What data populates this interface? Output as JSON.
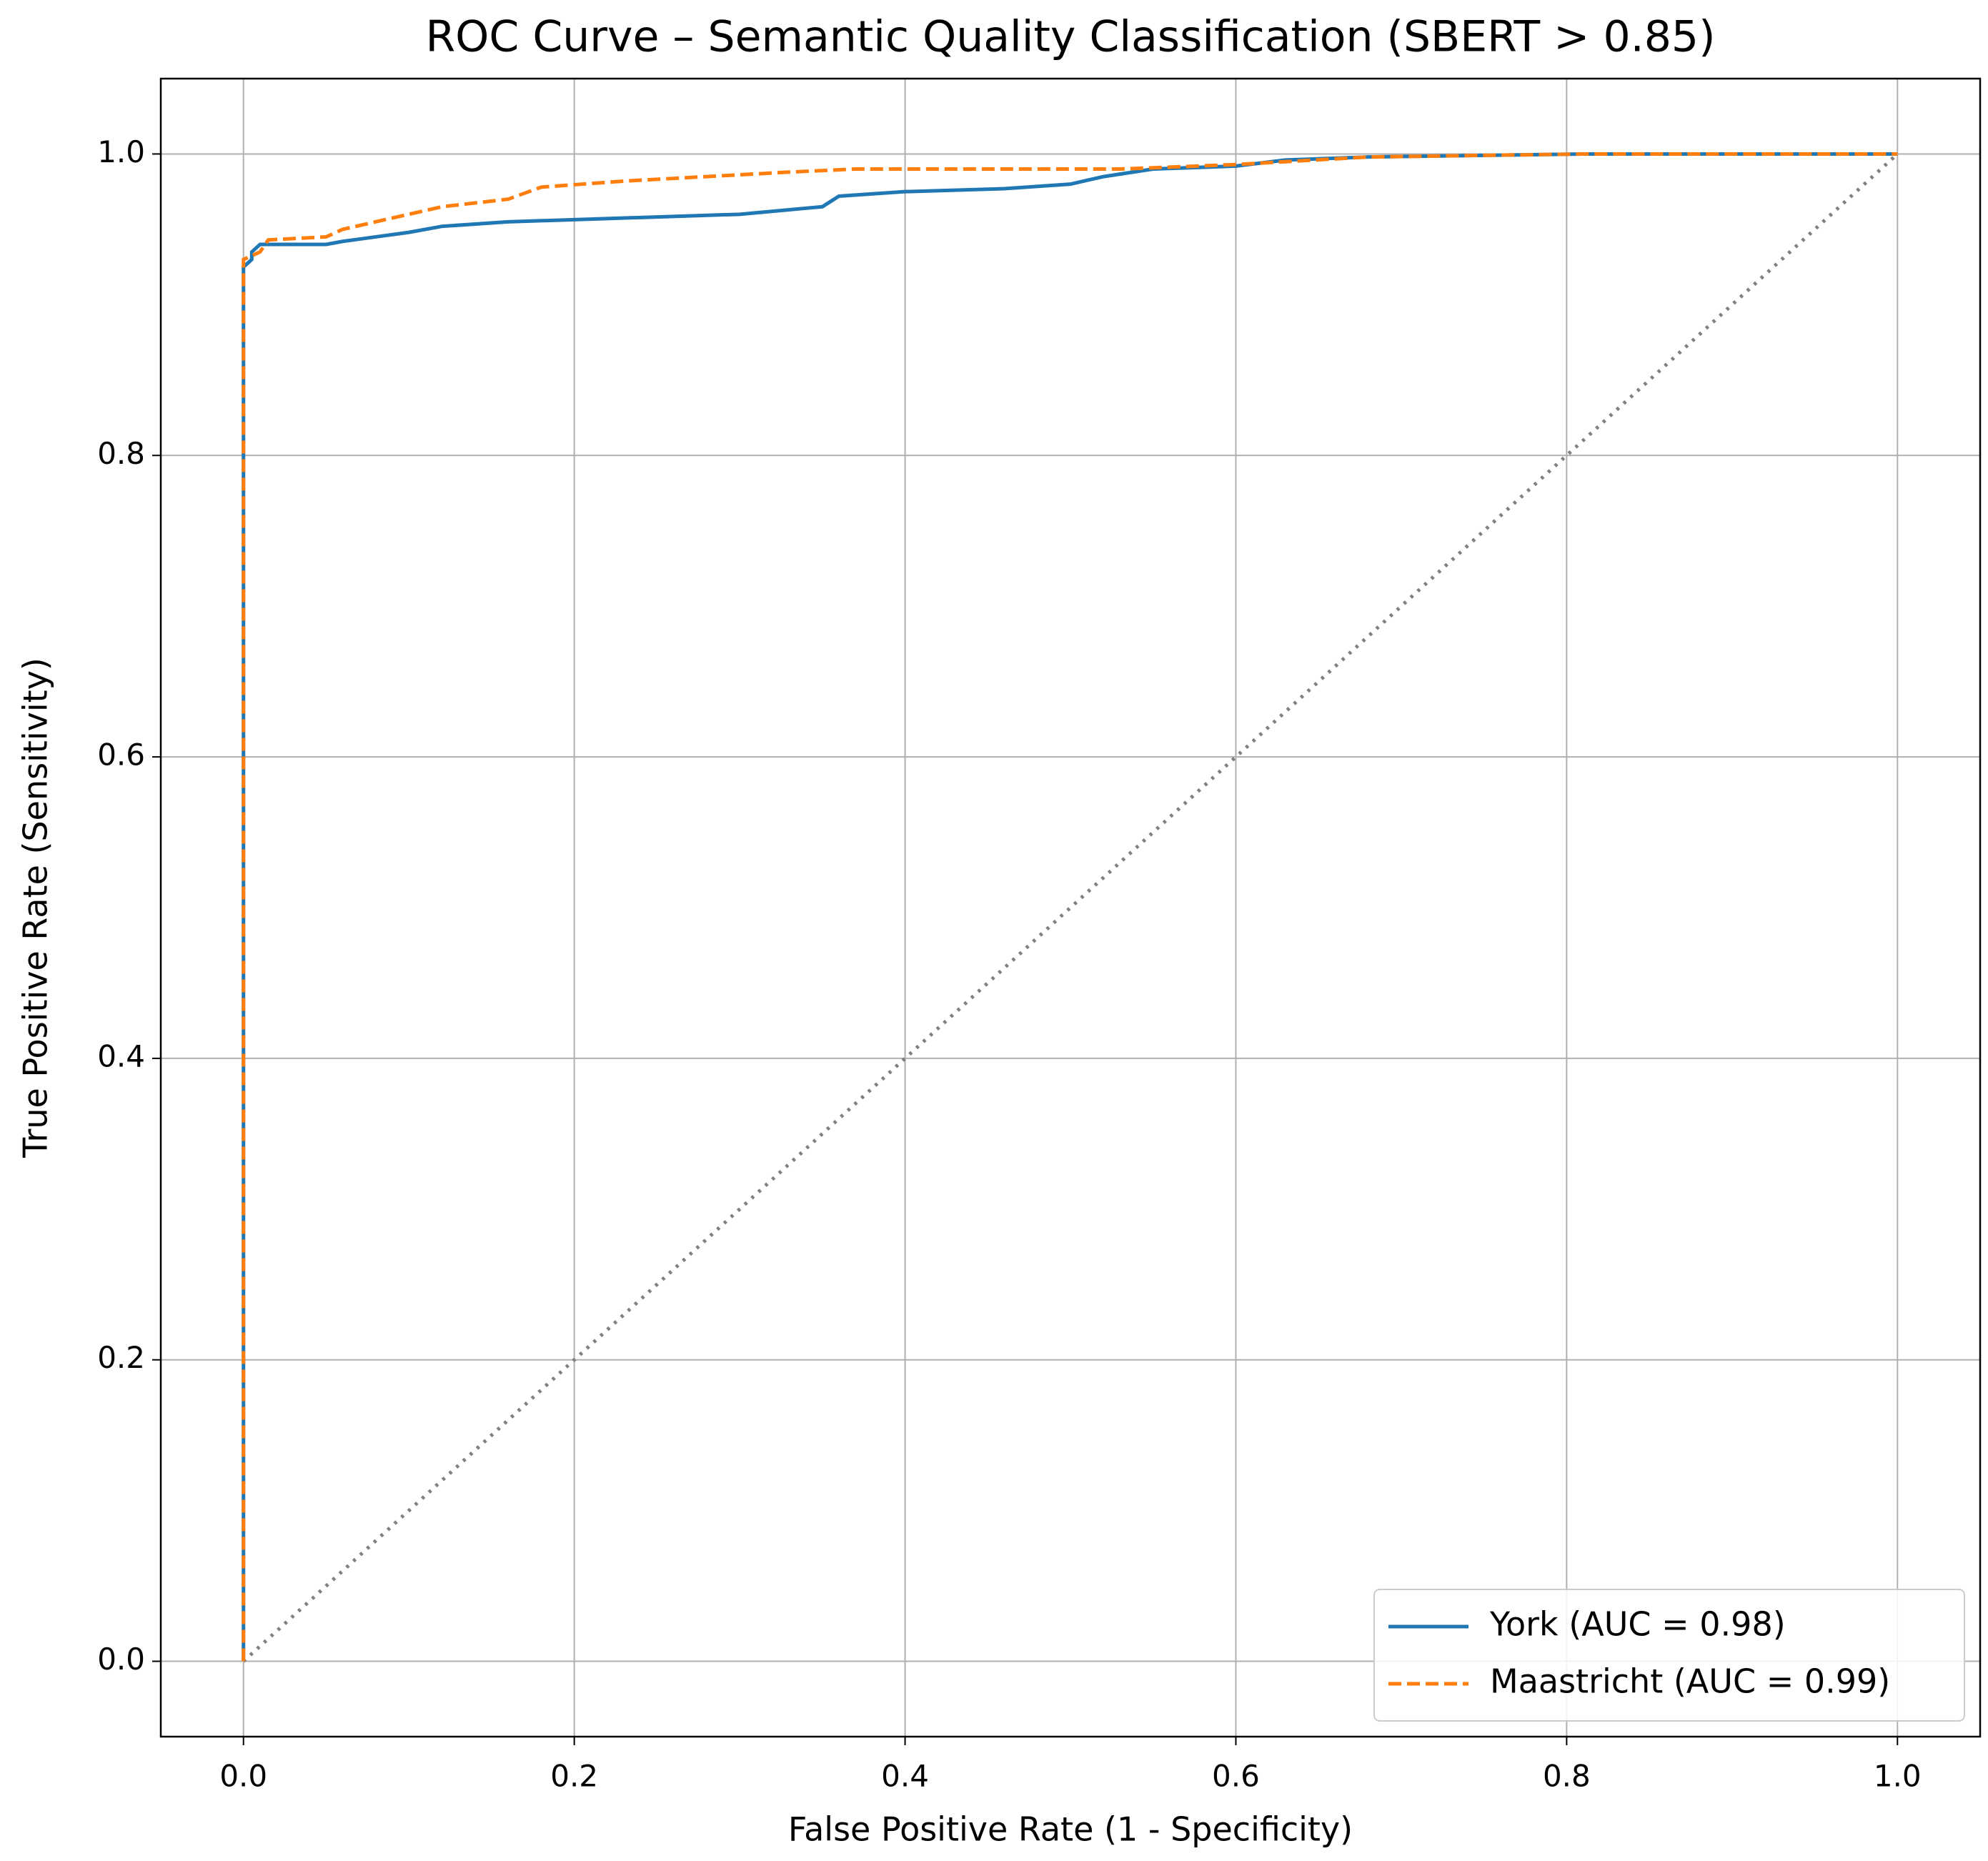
{
  "chart_data": {
    "type": "line",
    "title": "ROC Curve – Semantic Quality Classification (SBERT > 0.85)",
    "x_label": "False Positive Rate (1 - Specificity)",
    "y_label": "True Positive Rate (Sensitivity)",
    "xlim": [
      -0.05,
      1.05
    ],
    "ylim": [
      -0.05,
      1.05
    ],
    "xticks": [
      {
        "value": 0,
        "label": "0.0"
      },
      0.2,
      0.4,
      0.6,
      0.8,
      {
        "value": 1,
        "label": "1.0"
      }
    ],
    "yticks": [
      {
        "value": 0,
        "label": "0.0"
      },
      0.2,
      0.4,
      0.6,
      0.8,
      {
        "value": 1,
        "label": "1.0"
      }
    ],
    "grid": true,
    "legend": "lower right",
    "series": [
      {
        "name": "York (AUC = 0.98)",
        "color": "#1f77b4",
        "linestyle": "solid",
        "x": [
          0,
          0,
          0.005,
          0.005,
          0.01,
          0.05,
          0.06,
          0.08,
          0.1,
          0.12,
          0.16,
          0.3,
          0.35,
          0.36,
          0.4,
          0.46,
          0.5,
          0.52,
          0.55,
          0.6,
          0.63,
          0.68,
          0.81,
          1
        ],
        "values": [
          0,
          0.925,
          0.93,
          0.935,
          0.94,
          0.94,
          0.942,
          0.945,
          0.948,
          0.952,
          0.955,
          0.96,
          0.965,
          0.972,
          0.975,
          0.977,
          0.98,
          0.985,
          0.99,
          0.992,
          0.996,
          0.998,
          1.0,
          1.0
        ]
      },
      {
        "name": "Maastricht (AUC = 0.99)",
        "color": "#ff7f0e",
        "linestyle": "dashed",
        "x": [
          0,
          0,
          0.01,
          0.015,
          0.05,
          0.06,
          0.08,
          0.1,
          0.12,
          0.16,
          0.18,
          0.23,
          0.33,
          0.37,
          0.53,
          0.6,
          0.68,
          0.81,
          1
        ],
        "values": [
          0,
          0.93,
          0.935,
          0.943,
          0.945,
          0.95,
          0.955,
          0.96,
          0.965,
          0.97,
          0.978,
          0.982,
          0.988,
          0.99,
          0.99,
          0.993,
          0.998,
          1.0,
          1.0
        ]
      }
    ],
    "diagonal": {
      "x": [
        0,
        1
      ],
      "values": [
        0,
        1
      ],
      "color": "#808080",
      "linestyle": "dotted"
    }
  }
}
